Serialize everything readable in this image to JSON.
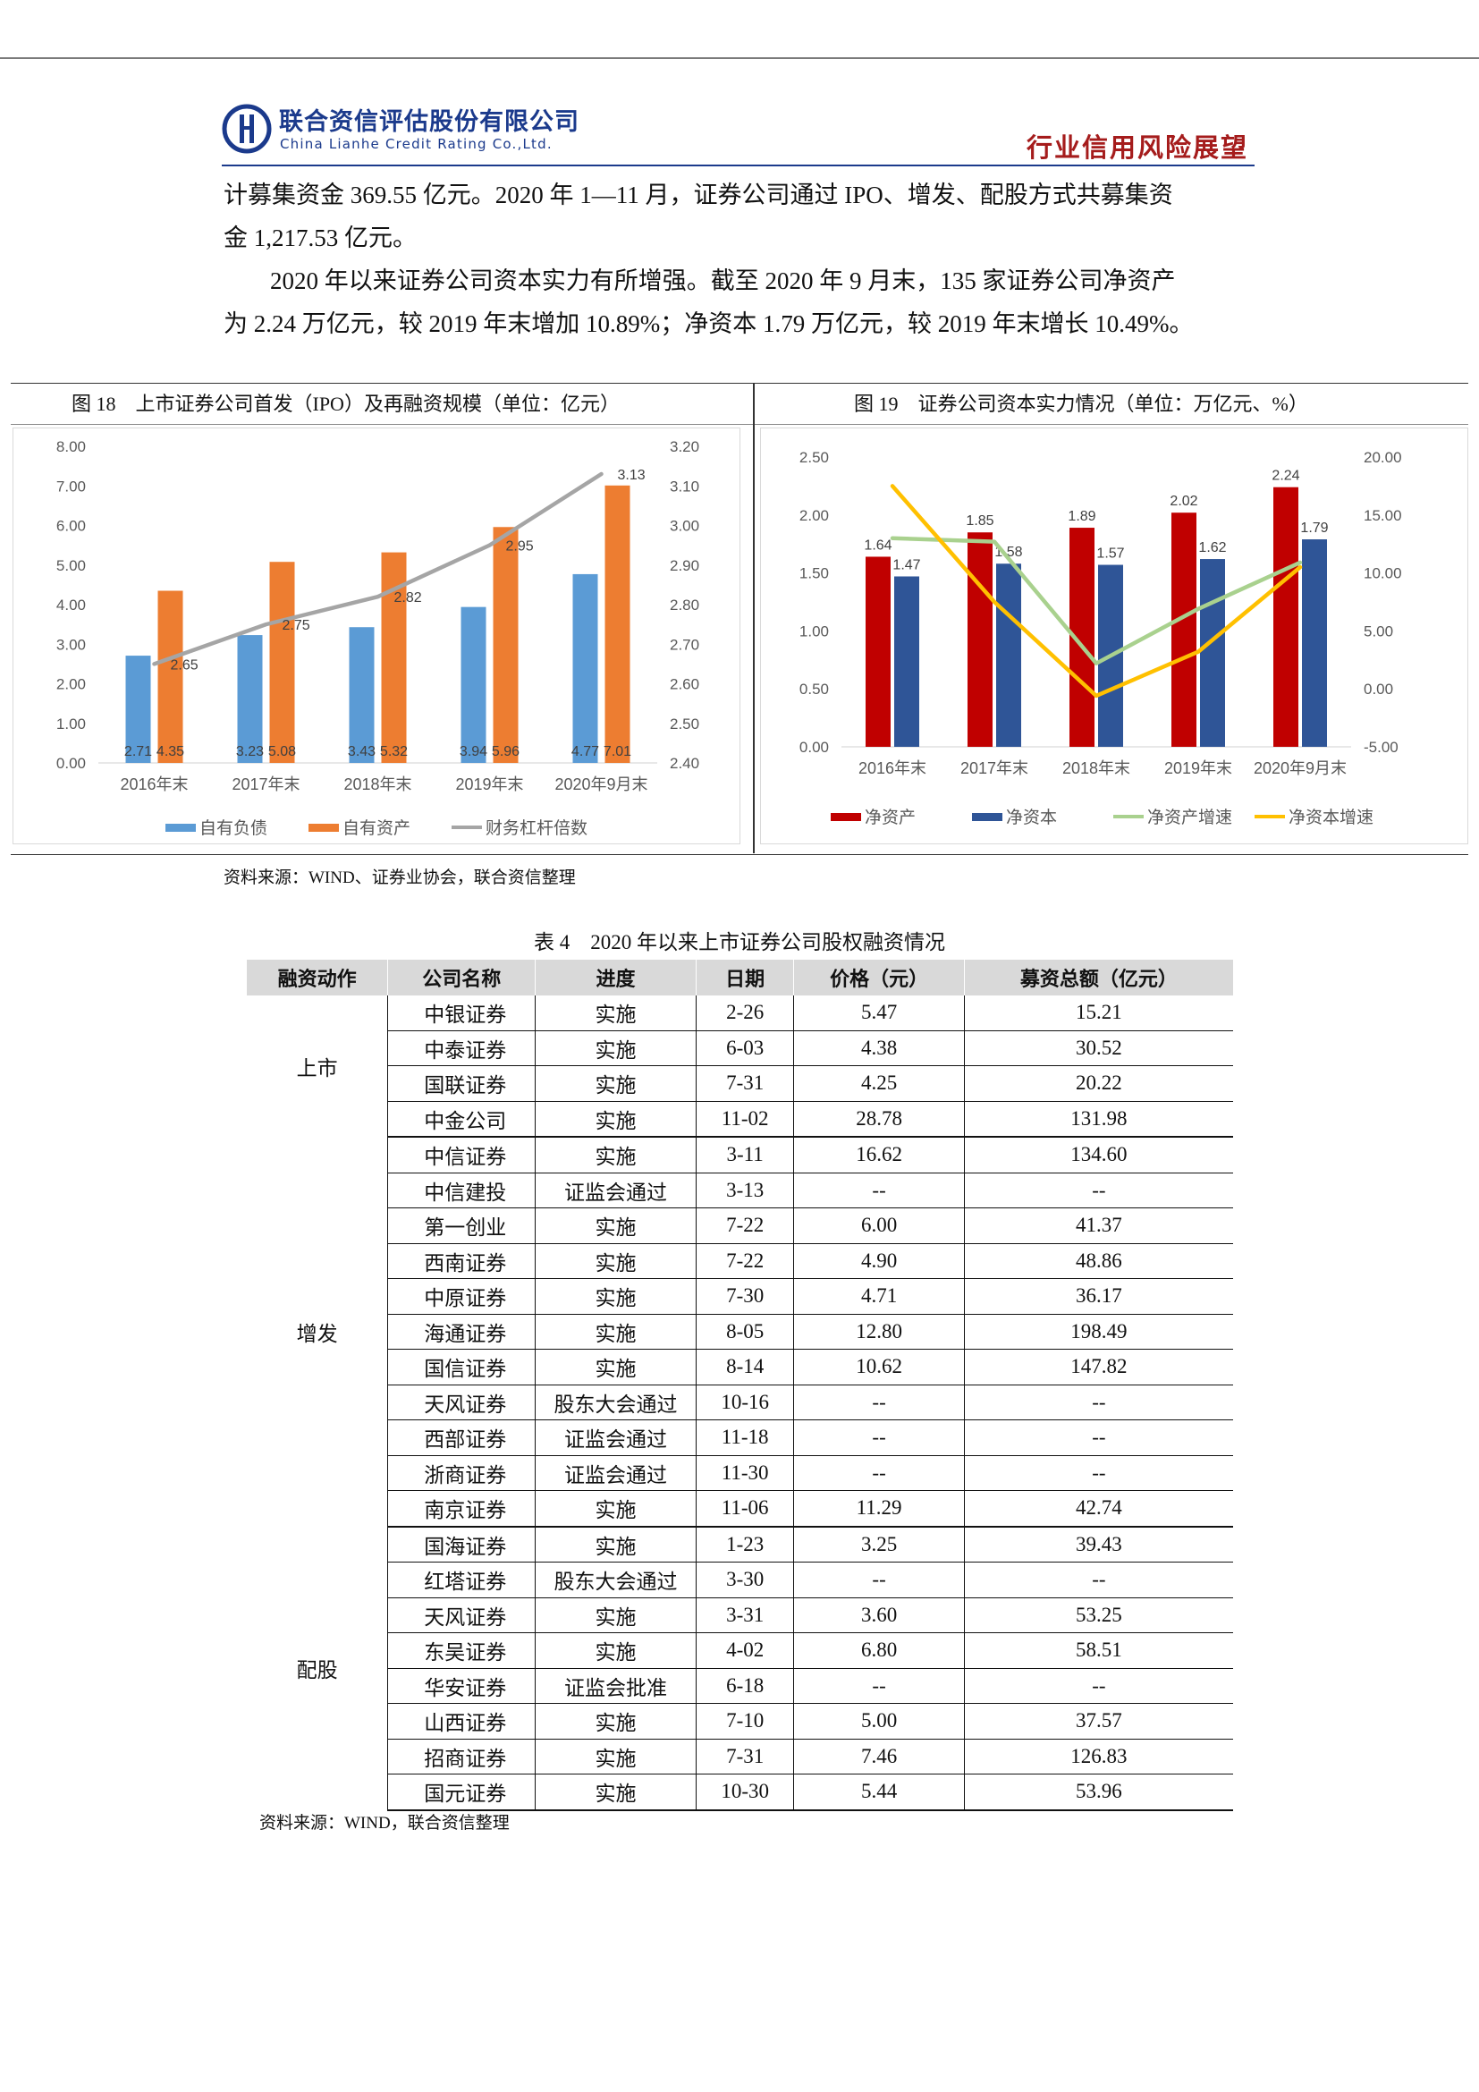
{
  "header": {
    "company_cn": "联合资信评估股份有限公司",
    "company_en": "China Lianhe Credit Rating Co.,Ltd.",
    "section": "行业信用风险展望"
  },
  "paragraphs": [
    "计募集资金 369.55 亿元。2020 年 1—11 月，证券公司通过 IPO、增发、配股方式共募集资",
    "金 1,217.53 亿元。",
    "2020 年以来证券公司资本实力有所增强。截至 2020 年 9 月末，135 家证券公司净资产",
    "为 2.24 万亿元，较 2019 年末增加 10.89%；净资本 1.79 万亿元，较 2019 年末增长 10.49%。"
  ],
  "figures": {
    "fig18_title": "图 18　上市证券公司首发（IPO）及再融资规模（单位：亿元）",
    "fig19_title": "图 19　证券公司资本实力情况（单位：万亿元、%）",
    "source": "资料来源：WIND、证券业协会，联合资信整理"
  },
  "chart_data": [
    {
      "type": "bar",
      "categories": [
        "2016年末",
        "2017年末",
        "2018年末",
        "2019年末",
        "2020年9月末"
      ],
      "series": [
        {
          "name": "自有负债",
          "kind": "bar",
          "axis": "left",
          "values": [
            2.71,
            3.23,
            3.43,
            3.94,
            4.77
          ],
          "labels": [
            "2.71",
            "3.23",
            "3.43",
            "3.94",
            "4.77"
          ],
          "color": "#5b9bd5"
        },
        {
          "name": "自有资产",
          "kind": "bar",
          "axis": "left",
          "values": [
            4.35,
            5.08,
            5.32,
            5.96,
            7.01
          ],
          "labels": [
            "4.35",
            "5.08",
            "5.32",
            "5.96",
            "7.01"
          ],
          "color": "#ed7d31"
        },
        {
          "name": "财务杠杆倍数",
          "kind": "line",
          "axis": "right",
          "values": [
            2.65,
            2.75,
            2.82,
            2.95,
            3.13
          ],
          "labels": [
            "2.65",
            "2.75",
            "2.82",
            "2.95",
            "3.13"
          ],
          "color": "#a5a5a5"
        }
      ],
      "ylim": [
        0,
        8
      ],
      "yticks": [
        "0.00",
        "1.00",
        "2.00",
        "3.00",
        "4.00",
        "5.00",
        "6.00",
        "7.00",
        "8.00"
      ],
      "y2lim": [
        2.4,
        3.2
      ],
      "y2ticks": [
        "2.40",
        "2.50",
        "2.60",
        "2.70",
        "2.80",
        "2.90",
        "3.00",
        "3.10",
        "3.20"
      ],
      "legend": "bottom",
      "grid": false
    },
    {
      "type": "bar",
      "categories": [
        "2016年末",
        "2017年末",
        "2018年末",
        "2019年末",
        "2020年9月末"
      ],
      "series": [
        {
          "name": "净资产",
          "kind": "bar",
          "axis": "left",
          "values": [
            1.64,
            1.85,
            1.89,
            2.02,
            2.24
          ],
          "labels": [
            "1.64",
            "1.85",
            "1.89",
            "2.02",
            "2.24"
          ],
          "color": "#c00000"
        },
        {
          "name": "净资本",
          "kind": "bar",
          "axis": "left",
          "values": [
            1.47,
            1.58,
            1.57,
            1.62,
            1.79
          ],
          "labels": [
            "1.47",
            "1.58",
            "1.57",
            "1.62",
            "1.79"
          ],
          "color": "#2f5597"
        },
        {
          "name": "净资产增速",
          "kind": "line",
          "axis": "right",
          "values": [
            13.0,
            12.7,
            2.2,
            6.9,
            10.9
          ],
          "color": "#a9d18e"
        },
        {
          "name": "净资本增速",
          "kind": "line",
          "axis": "right",
          "values": [
            17.5,
            7.5,
            -0.6,
            3.2,
            10.5
          ],
          "color": "#ffc000"
        }
      ],
      "ylim": [
        0,
        2.5
      ],
      "yticks": [
        "0.00",
        "0.50",
        "1.00",
        "1.50",
        "2.00",
        "2.50"
      ],
      "y2lim": [
        -5,
        20
      ],
      "y2ticks": [
        "-5.00",
        "0.00",
        "5.00",
        "10.00",
        "15.00",
        "20.00"
      ],
      "legend": "bottom",
      "grid": false
    },
    {
      "type": "table",
      "title": "表 4　2020 年以来上市证券公司股权融资情况",
      "columns": [
        "融资动作",
        "公司名称",
        "进度",
        "日期",
        "价格（元）",
        "募资总额（亿元）"
      ],
      "groups": [
        {
          "action": "上市",
          "rows": [
            [
              "中银证券",
              "实施",
              "2-26",
              "5.47",
              "15.21"
            ],
            [
              "中泰证券",
              "实施",
              "6-03",
              "4.38",
              "30.52"
            ],
            [
              "国联证券",
              "实施",
              "7-31",
              "4.25",
              "20.22"
            ],
            [
              "中金公司",
              "实施",
              "11-02",
              "28.78",
              "131.98"
            ]
          ]
        },
        {
          "action": "增发",
          "rows": [
            [
              "中信证券",
              "实施",
              "3-11",
              "16.62",
              "134.60"
            ],
            [
              "中信建投",
              "证监会通过",
              "3-13",
              "--",
              "--"
            ],
            [
              "第一创业",
              "实施",
              "7-22",
              "6.00",
              "41.37"
            ],
            [
              "西南证券",
              "实施",
              "7-22",
              "4.90",
              "48.86"
            ],
            [
              "中原证券",
              "实施",
              "7-30",
              "4.71",
              "36.17"
            ],
            [
              "海通证券",
              "实施",
              "8-05",
              "12.80",
              "198.49"
            ],
            [
              "国信证券",
              "实施",
              "8-14",
              "10.62",
              "147.82"
            ],
            [
              "天风证券",
              "股东大会通过",
              "10-16",
              "--",
              "--"
            ],
            [
              "西部证券",
              "证监会通过",
              "11-18",
              "--",
              "--"
            ],
            [
              "浙商证券",
              "证监会通过",
              "11-30",
              "--",
              "--"
            ],
            [
              "南京证券",
              "实施",
              "11-06",
              "11.29",
              "42.74"
            ]
          ]
        },
        {
          "action": "配股",
          "rows": [
            [
              "国海证券",
              "实施",
              "1-23",
              "3.25",
              "39.43"
            ],
            [
              "红塔证券",
              "股东大会通过",
              "3-30",
              "--",
              "--"
            ],
            [
              "天风证券",
              "实施",
              "3-31",
              "3.60",
              "53.25"
            ],
            [
              "东吴证券",
              "实施",
              "4-02",
              "6.80",
              "58.51"
            ],
            [
              "华安证券",
              "证监会批准",
              "6-18",
              "--",
              "--"
            ],
            [
              "山西证券",
              "实施",
              "7-10",
              "5.00",
              "37.57"
            ],
            [
              "招商证券",
              "实施",
              "7-31",
              "7.46",
              "126.83"
            ],
            [
              "国元证券",
              "实施",
              "10-30",
              "5.44",
              "53.96"
            ]
          ]
        }
      ]
    }
  ],
  "table_source": "资料来源：WIND，联合资信整理"
}
